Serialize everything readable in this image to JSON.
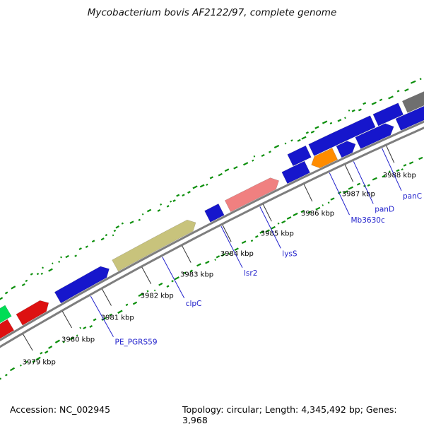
{
  "title": "Mycobacterium bovis AF2122/97, complete genome",
  "footer": {
    "accession": "Accession: NC_002945",
    "stats": "Topology: circular; Length: 4,345,492 bp; Genes: 3,968"
  },
  "chart_data": {
    "type": "genome-map",
    "organism": "Mycobacterium bovis AF2122/97",
    "accession": "NC_002945",
    "topology": "circular",
    "length_bp": 4345492,
    "genes_total": 3968,
    "visible_range_kbp": [
      3978.4,
      3989.0
    ],
    "ticks": [
      {
        "bp": 3979000,
        "label": "3979 kbp"
      },
      {
        "bp": 3980000,
        "label": "3980 kbp"
      },
      {
        "bp": 3981000,
        "label": "3981 kbp"
      },
      {
        "bp": 3982000,
        "label": "3982 kbp"
      },
      {
        "bp": 3983000,
        "label": "3983 kbp"
      },
      {
        "bp": 3984000,
        "label": "3984 kbp"
      },
      {
        "bp": 3985000,
        "label": "3985 kbp"
      },
      {
        "bp": 3986000,
        "label": "3986 kbp"
      },
      {
        "bp": 3987000,
        "label": "3987 kbp"
      },
      {
        "bp": 3988000,
        "label": "3988 kbp"
      }
    ],
    "genes": [
      {
        "start": 3978400,
        "end": 3978870,
        "track": "t1",
        "color": "#dd1111"
      },
      {
        "start": 3978560,
        "end": 3978980,
        "track": "t2",
        "color": "#00dd55",
        "point": "start"
      },
      {
        "start": 3979090,
        "end": 3979830,
        "track": "t1",
        "color": "#dd1111",
        "point": "end"
      },
      {
        "label": "PE_PGRS59",
        "start": 3980060,
        "end": 3981350,
        "track": "t1",
        "color": "#1616cc",
        "point": "end"
      },
      {
        "label": "clpC",
        "start": 3981500,
        "end": 3983500,
        "track": "t1",
        "color": "#c8c37c",
        "point": "end"
      },
      {
        "label": "lsr2",
        "start": 3983790,
        "end": 3984130,
        "track": "t1",
        "color": "#1616cc"
      },
      {
        "label": "lysS",
        "start": 3984290,
        "end": 3985540,
        "track": "t1",
        "color": "#f08080",
        "point": "end"
      },
      {
        "start": 3985680,
        "end": 3986230,
        "track": "t1",
        "color": "#1616cc"
      },
      {
        "start": 3985960,
        "end": 3986400,
        "track": "t2",
        "color": "#1616cc"
      },
      {
        "label": "Mb3630c",
        "start": 3986330,
        "end": 3986900,
        "track": "t1",
        "color": "#ff8c00",
        "point": "start"
      },
      {
        "label": "panD",
        "start": 3987000,
        "end": 3987400,
        "track": "t1",
        "color": "#1616cc",
        "point": "end"
      },
      {
        "label": "panC",
        "start": 3987460,
        "end": 3988320,
        "track": "t1",
        "color": "#1616cc",
        "point": "end"
      },
      {
        "start": 3988430,
        "end": 3989260,
        "track": "t1",
        "color": "#1616cc"
      },
      {
        "start": 3986470,
        "end": 3987950,
        "track": "t2",
        "color": "#1616cc"
      },
      {
        "start": 3988020,
        "end": 3988620,
        "track": "t2",
        "color": "#1616cc"
      },
      {
        "start": 3988720,
        "end": 3990000,
        "track": "t2",
        "color": "#6f6f6f"
      }
    ],
    "colors": {
      "backbone": "#7e7e7e",
      "gc_dots": "#0c8f0c",
      "gene_label": "#2222cc",
      "tick_label": "#000000"
    }
  }
}
